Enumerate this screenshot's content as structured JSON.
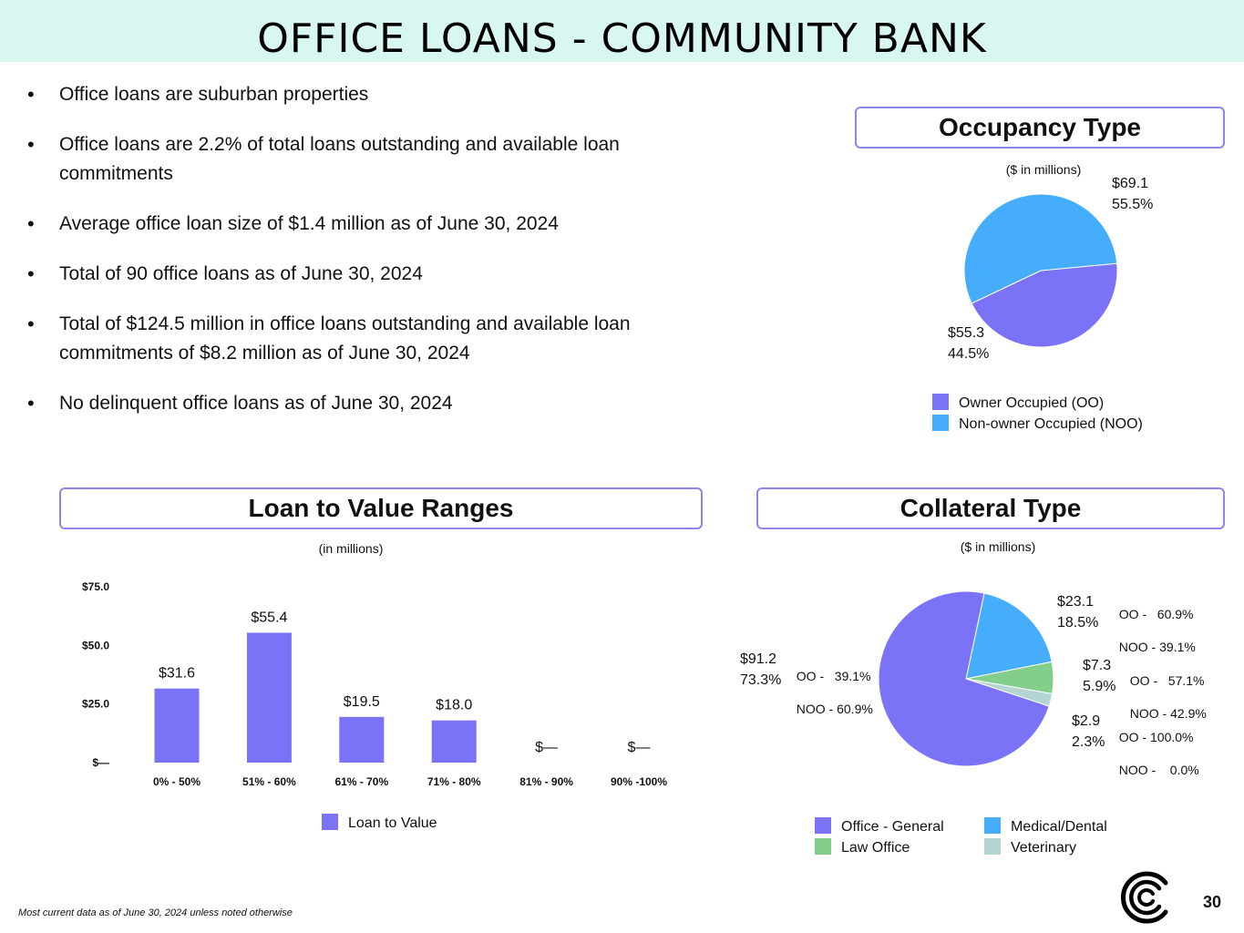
{
  "header": {
    "title": "OFFICE LOANS - COMMUNITY BANK"
  },
  "bullets": [
    {
      "text": "Office loans are suburban properties"
    },
    {
      "line1": "Office loans are 2.2% of total loans outstanding and available loan",
      "line2": "commitments"
    },
    {
      "text": "Average office loan size of $1.4 million as of June 30, 2024"
    },
    {
      "text": "Total of 90 office loans as of June 30, 2024"
    },
    {
      "line1": "Total of $124.5 million in office loans outstanding and available loan",
      "line2": "commitments of $8.2 million as of June 30, 2024"
    },
    {
      "text": "No delinquent office loans as of June 30, 2024"
    }
  ],
  "occupancy": {
    "title": "Occupancy Type",
    "subtitle": "($ in millions)",
    "labels": {
      "noo_amount": "$69.1",
      "noo_pct": "55.5%",
      "oo_amount": "$55.3",
      "oo_pct": "44.5%"
    },
    "legend": [
      "Owner Occupied (OO)",
      "Non-owner Occupied (NOO)"
    ]
  },
  "ltv": {
    "title": "Loan to Value Ranges",
    "subtitle": "(in millions)",
    "legend": "Loan to Value"
  },
  "collateral": {
    "title": "Collateral Type",
    "subtitle": "($ in millions)",
    "labels": {
      "general_amount": "$91.2",
      "general_pct": "73.3%",
      "general_oo": "OO -   39.1%",
      "general_noo": "NOO - 60.9%",
      "medical_amount": "$23.1",
      "medical_pct": "18.5%",
      "medical_oo": "OO -   60.9%",
      "medical_noo": "NOO - 39.1%",
      "law_amount": "$7.3",
      "law_pct": "5.9%",
      "law_oo": "OO -   57.1%",
      "law_noo": "NOO - 42.9%",
      "vet_amount": "$2.9",
      "vet_pct": "2.3%",
      "vet_oo": "OO - 100.0%",
      "vet_noo": "NOO -    0.0%"
    },
    "legend": [
      "Office - General",
      "Medical/Dental",
      "Law Office",
      "Veterinary"
    ]
  },
  "colors": {
    "oo": "#7b73f7",
    "noo": "#45adfb",
    "general": "#7b73f7",
    "medical": "#45adfb",
    "law": "#84ce8c",
    "vet": "#b3d6d2",
    "bar": "#7b73f7",
    "box_border": "#8c86e8",
    "header_bg": "#d9f7f1"
  },
  "chart_data": [
    {
      "type": "pie",
      "categories": [
        "Owner Occupied (OO)",
        "Non-owner Occupied (NOO)"
      ],
      "values": [
        55.3,
        69.1
      ],
      "percentages": [
        44.5,
        55.5
      ],
      "title": "Occupancy Type",
      "subtitle": "($ in millions)",
      "legend": "bottom"
    },
    {
      "type": "bar",
      "title": "Loan to Value Ranges",
      "subtitle": "(in millions)",
      "categories": [
        "0% - 50%",
        "51% - 60%",
        "61% - 70%",
        "71% - 80%",
        "81% - 90%",
        "90% -100%"
      ],
      "series": [
        {
          "name": "Loan to Value",
          "values": [
            31.6,
            55.4,
            19.5,
            18.0,
            0,
            0
          ]
        }
      ],
      "data_labels": [
        "$31.6",
        "$55.4",
        "$19.5",
        "$18.0",
        "$—",
        "$—"
      ],
      "yticks": [
        "$—",
        "$25.0",
        "$50.0",
        "$75.0"
      ],
      "ylim": [
        0,
        75
      ],
      "grid": false,
      "legend": "bottom"
    },
    {
      "type": "pie",
      "title": "Collateral Type",
      "subtitle": "($ in millions)",
      "categories": [
        "Office - General",
        "Medical/Dental",
        "Law Office",
        "Veterinary"
      ],
      "values": [
        91.2,
        23.1,
        7.3,
        2.9
      ],
      "percentages": [
        73.3,
        18.5,
        5.9,
        2.3
      ],
      "legend": "bottom"
    }
  ],
  "footer": {
    "note": "Most current data as of June 30, 2024 unless noted otherwise",
    "page": "30"
  }
}
